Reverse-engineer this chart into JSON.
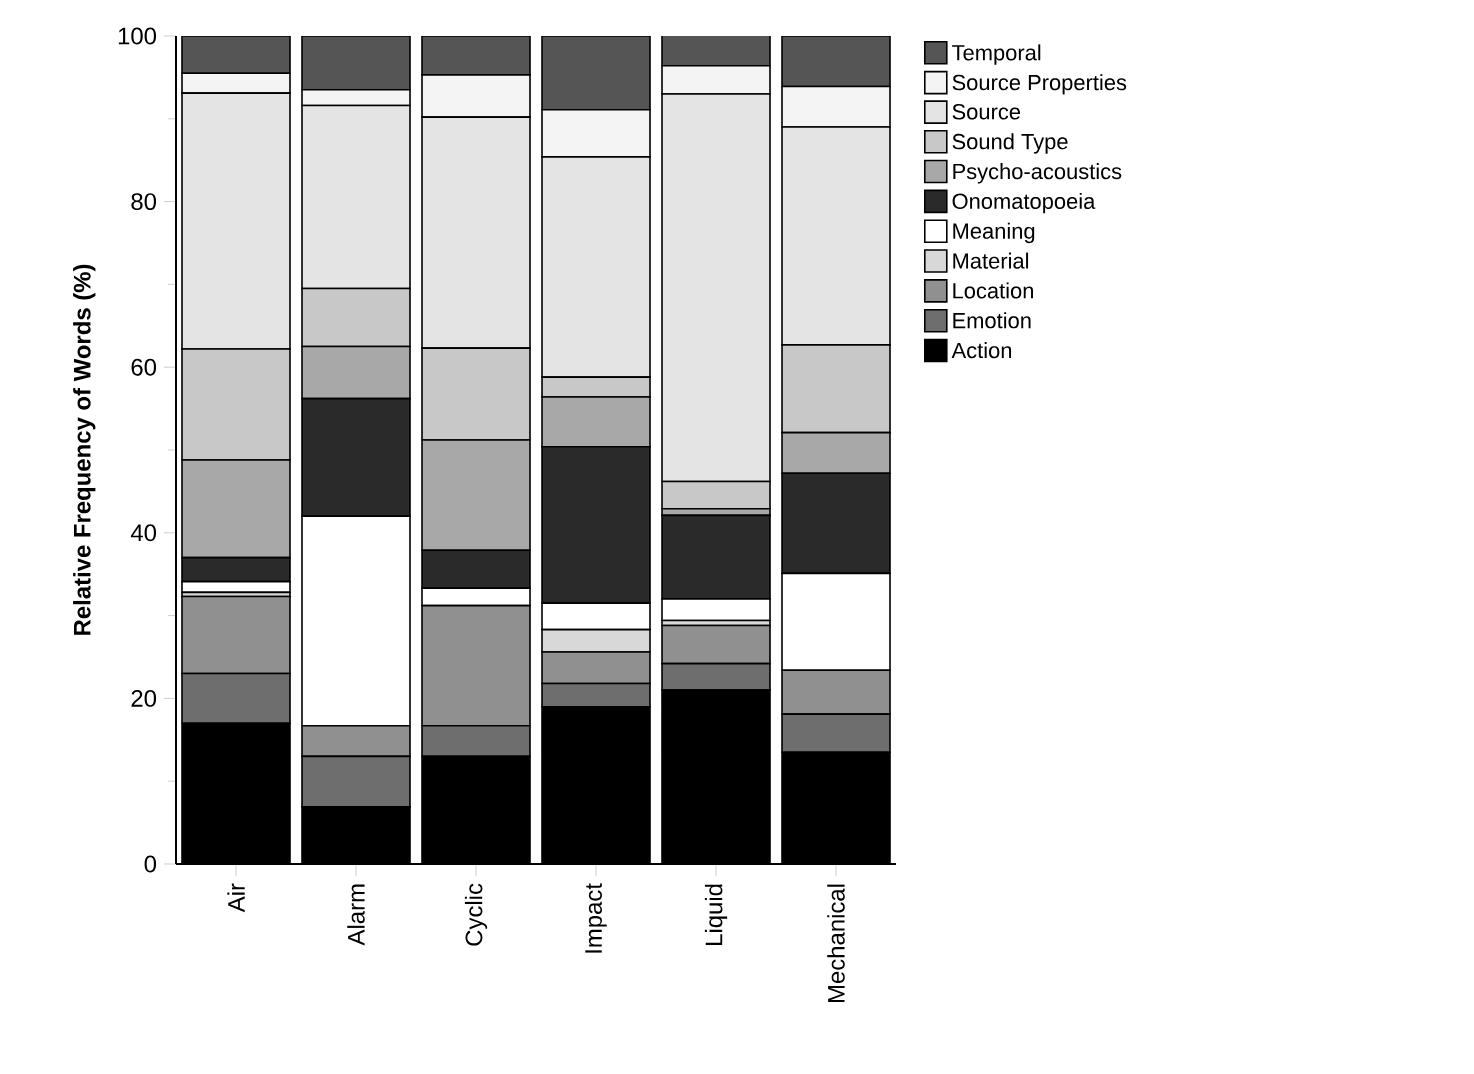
{
  "chart_data": {
    "type": "bar",
    "stacked": true,
    "ylabel": "Relative Frequency of Words (%)",
    "categories": [
      "Air",
      "Alarm",
      "Cyclic",
      "Impact",
      "Liquid",
      "Mechanical"
    ],
    "ylim": [
      0,
      100
    ],
    "yticks": [
      0,
      20,
      40,
      60,
      80,
      100
    ],
    "legend": "top right",
    "series": [
      {
        "name": "Action",
        "color": "#000000",
        "values": [
          17.0,
          6.9,
          13.0,
          19.0,
          21.0,
          13.5
        ]
      },
      {
        "name": "Emotion",
        "color": "#6e6e6e",
        "values": [
          6.0,
          6.1,
          3.7,
          2.8,
          3.2,
          4.6
        ]
      },
      {
        "name": "Location",
        "color": "#909090",
        "values": [
          9.3,
          3.7,
          14.5,
          3.8,
          4.6,
          5.3
        ]
      },
      {
        "name": "Material",
        "color": "#d8d8d8",
        "values": [
          0.5,
          0,
          0,
          2.7,
          0.6,
          0
        ]
      },
      {
        "name": "Meaning",
        "color": "#ffffff",
        "values": [
          1.3,
          25.3,
          2.1,
          3.2,
          2.6,
          11.7
        ]
      },
      {
        "name": "Onomatopoeia",
        "color": "#2a2a2a",
        "values": [
          2.9,
          14.2,
          4.6,
          18.9,
          10.1,
          12.1
        ]
      },
      {
        "name": "Psycho-acoustics",
        "color": "#a8a8a8",
        "values": [
          11.8,
          6.3,
          13.3,
          6.0,
          0.8,
          4.9
        ]
      },
      {
        "name": "Sound Type",
        "color": "#c8c8c8",
        "values": [
          13.4,
          7.0,
          11.1,
          2.4,
          3.3,
          10.6
        ]
      },
      {
        "name": "Source",
        "color": "#e4e4e4",
        "values": [
          30.9,
          22.1,
          27.9,
          26.6,
          46.8,
          26.3
        ]
      },
      {
        "name": "Source Properties",
        "color": "#f4f4f4",
        "values": [
          2.4,
          1.9,
          5.1,
          5.7,
          3.4,
          4.9
        ]
      },
      {
        "name": "Temporal",
        "color": "#555555",
        "values": [
          4.5,
          6.5,
          4.7,
          8.9,
          3.7,
          6.1
        ]
      }
    ]
  }
}
